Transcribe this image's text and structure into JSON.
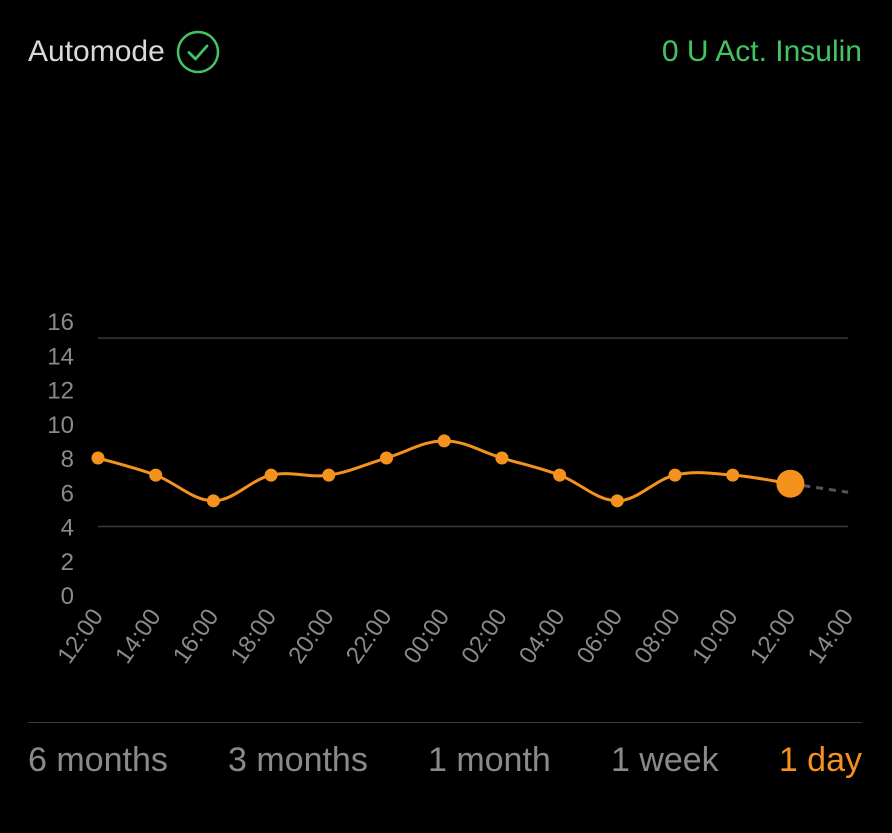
{
  "header": {
    "automode_label": "Automode",
    "status_icon": "check-circle-icon",
    "insulin_label": "0 U Act. Insulin"
  },
  "colors": {
    "accent": "#f5921e",
    "positive": "#43c463",
    "grid": "#3a3a3a",
    "axis_text": "#8a8a8a"
  },
  "chart_data": {
    "type": "line",
    "y_ticks": [
      "16",
      "14",
      "12",
      "10",
      "8",
      "6",
      "4",
      "2",
      "0"
    ],
    "x_ticks": [
      "12:00",
      "14:00",
      "16:00",
      "18:00",
      "20:00",
      "22:00",
      "00:00",
      "02:00",
      "04:00",
      "06:00",
      "08:00",
      "10:00",
      "12:00",
      "14:00"
    ],
    "ylim": [
      0,
      16
    ],
    "gridlines": [
      4,
      15
    ],
    "series": [
      {
        "values": [
          8.0,
          7.0,
          5.5,
          7.0,
          7.0,
          8.0,
          9.0,
          8.0,
          7.0,
          5.5,
          7.0,
          7.0,
          6.5
        ],
        "current_value": 6.5,
        "projection_end": 6.0
      }
    ]
  },
  "ranges": {
    "tabs": [
      {
        "label": "6 months",
        "active": false
      },
      {
        "label": "3 months",
        "active": false
      },
      {
        "label": "1 month",
        "active": false
      },
      {
        "label": "1 week",
        "active": false
      },
      {
        "label": "1 day",
        "active": true
      }
    ]
  }
}
